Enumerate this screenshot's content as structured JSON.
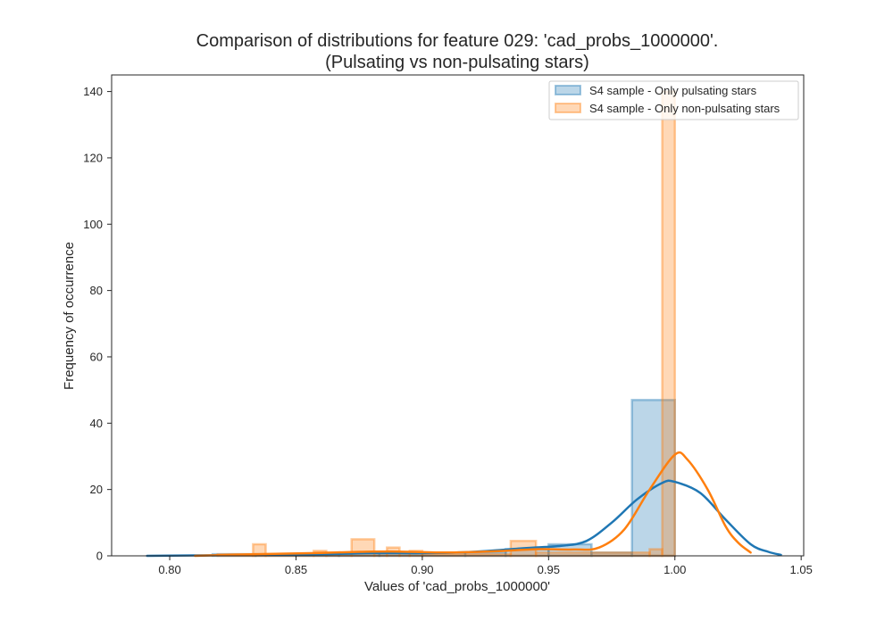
{
  "chart_data": {
    "type": "histogram",
    "title_line1": "Comparison of distributions for feature 029: 'cad_probs_1000000'.",
    "title_line2": "(Pulsating vs non-pulsating stars)",
    "xlabel": "Values of 'cad_probs_1000000'",
    "ylabel": "Frequency of occurrence",
    "xlim": [
      0.777,
      1.051
    ],
    "ylim": [
      0,
      145
    ],
    "xticks": [
      0.8,
      0.85,
      0.9,
      0.95,
      1.0,
      1.05
    ],
    "xtick_labels": [
      "0.80",
      "0.85",
      "0.90",
      "0.95",
      "1.00",
      "1.05"
    ],
    "yticks": [
      0,
      20,
      40,
      60,
      80,
      100,
      120,
      140
    ],
    "ytick_labels": [
      "0",
      "20",
      "40",
      "60",
      "80",
      "100",
      "120",
      "140"
    ],
    "legend_position": "top-right",
    "grid": false,
    "series": [
      {
        "name": "S4 sample - Only pulsating stars",
        "color": "#1f77b4",
        "hist_bins": [
          {
            "x0": 0.801,
            "x1": 0.817,
            "count": 0
          },
          {
            "x0": 0.817,
            "x1": 0.834,
            "count": 0.5
          },
          {
            "x0": 0.834,
            "x1": 0.85,
            "count": 0.5
          },
          {
            "x0": 0.85,
            "x1": 0.867,
            "count": 0.5
          },
          {
            "x0": 0.867,
            "x1": 0.883,
            "count": 1
          },
          {
            "x0": 0.883,
            "x1": 0.9,
            "count": 1
          },
          {
            "x0": 0.9,
            "x1": 0.917,
            "count": 1
          },
          {
            "x0": 0.917,
            "x1": 0.933,
            "count": 1
          },
          {
            "x0": 0.933,
            "x1": 0.95,
            "count": 2
          },
          {
            "x0": 0.95,
            "x1": 0.967,
            "count": 3.5
          },
          {
            "x0": 0.967,
            "x1": 0.983,
            "count": 1
          },
          {
            "x0": 0.983,
            "x1": 1.0,
            "count": 47
          }
        ],
        "kde": [
          [
            0.791,
            0
          ],
          [
            0.82,
            0.2
          ],
          [
            0.86,
            0.5
          ],
          [
            0.88,
            0.8
          ],
          [
            0.9,
            0.8
          ],
          [
            0.92,
            1.2
          ],
          [
            0.94,
            2.3
          ],
          [
            0.955,
            3.0
          ],
          [
            0.965,
            4.5
          ],
          [
            0.975,
            10
          ],
          [
            0.985,
            17
          ],
          [
            0.995,
            22
          ],
          [
            1.0,
            22.3
          ],
          [
            1.01,
            19
          ],
          [
            1.02,
            11
          ],
          [
            1.03,
            3.5
          ],
          [
            1.037,
            1.2
          ],
          [
            1.042,
            0.3
          ]
        ]
      },
      {
        "name": "S4 sample - Only non-pulsating stars",
        "color": "#ff7f0e",
        "hist_bins": [
          {
            "x0": 0.805,
            "x1": 0.819,
            "count": 0
          },
          {
            "x0": 0.819,
            "x1": 0.833,
            "count": 0.5
          },
          {
            "x0": 0.833,
            "x1": 0.838,
            "count": 3.5
          },
          {
            "x0": 0.838,
            "x1": 0.857,
            "count": 0.5
          },
          {
            "x0": 0.857,
            "x1": 0.862,
            "count": 1.5
          },
          {
            "x0": 0.862,
            "x1": 0.872,
            "count": 1
          },
          {
            "x0": 0.872,
            "x1": 0.881,
            "count": 5
          },
          {
            "x0": 0.881,
            "x1": 0.886,
            "count": 1
          },
          {
            "x0": 0.886,
            "x1": 0.891,
            "count": 2.5
          },
          {
            "x0": 0.891,
            "x1": 0.895,
            "count": 1
          },
          {
            "x0": 0.895,
            "x1": 0.9,
            "count": 1.5
          },
          {
            "x0": 0.9,
            "x1": 0.935,
            "count": 0.5
          },
          {
            "x0": 0.935,
            "x1": 0.945,
            "count": 4.5
          },
          {
            "x0": 0.945,
            "x1": 0.99,
            "count": 1
          },
          {
            "x0": 0.99,
            "x1": 0.995,
            "count": 2
          },
          {
            "x0": 0.995,
            "x1": 1.0,
            "count": 140
          }
        ],
        "kde": [
          [
            0.81,
            0
          ],
          [
            0.835,
            0.5
          ],
          [
            0.86,
            0.9
          ],
          [
            0.875,
            1.2
          ],
          [
            0.89,
            1.3
          ],
          [
            0.91,
            1.0
          ],
          [
            0.93,
            1.4
          ],
          [
            0.945,
            2.0
          ],
          [
            0.96,
            1.9
          ],
          [
            0.97,
            2.5
          ],
          [
            0.98,
            8
          ],
          [
            0.99,
            20
          ],
          [
            1.0,
            30.5
          ],
          [
            1.005,
            29
          ],
          [
            1.013,
            20
          ],
          [
            1.02,
            9
          ],
          [
            1.025,
            4
          ],
          [
            1.03,
            1
          ]
        ]
      }
    ]
  }
}
